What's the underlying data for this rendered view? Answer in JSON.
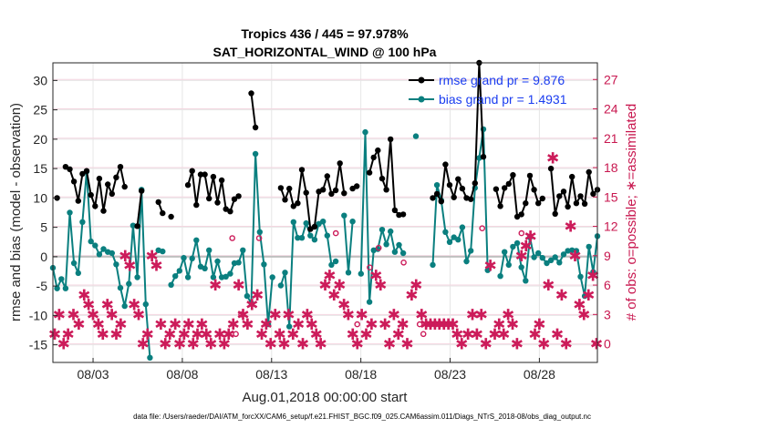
{
  "chart_data": {
    "type": "line",
    "title": "Tropics 436 / 445 = 97.978%",
    "subtitle": "SAT_HORIZONTAL_WIND @ 100 hPa",
    "xlabel": "Aug.01,2018 00:00:00 start",
    "ylabel": "rmse and bias (model - observation)",
    "y2label": "# of obs: o=possible; ∗=assimilated",
    "footer": "data file: /Users/raeder/DAI/ATM_forcXX/CAM6_setup/f.e21.FHIST_BGC.f09_025.CAM6assim.011/Diags_NTrS_2018-08/obs_diag_output.nc",
    "xlim": [
      0.75,
      31.25
    ],
    "ylim": [
      -18,
      33
    ],
    "y2lim": [
      -1.9,
      28.7
    ],
    "x_ticks": [
      3,
      8,
      13,
      18,
      23,
      28
    ],
    "x_tick_labels": [
      "08/03",
      "08/08",
      "08/13",
      "08/18",
      "08/23",
      "08/28"
    ],
    "y_ticks": [
      -15,
      -10,
      -5,
      0,
      5,
      10,
      15,
      20,
      25,
      30
    ],
    "y_tick_labels": [
      "-15",
      "-10",
      "-5",
      "0",
      "5",
      "10",
      "15",
      "20",
      "25",
      "30"
    ],
    "y2_ticks": [
      0,
      3,
      6,
      9,
      12,
      15,
      18,
      21,
      24,
      27
    ],
    "y2_tick_labels": [
      "0",
      "3",
      "6",
      "9",
      "12",
      "15",
      "18",
      "21",
      "24",
      "27"
    ],
    "legend_position": "top-right",
    "grid": true,
    "colors": {
      "rmse": "#000000",
      "bias": "#0a7f7f",
      "obs": "#cc1c5a",
      "zero": "#bfbfbf"
    },
    "series": [
      {
        "name": "rmse grand pr = 9.876",
        "key": "rmse",
        "values": [
          null,
          10.0,
          null,
          15.3,
          14.9,
          12.8,
          9.5,
          14.1,
          14.6,
          10.5,
          8.6,
          13.3,
          7.8,
          12.3,
          10.7,
          13.5,
          15.3,
          11.9,
          null,
          null,
          5.2,
          11.2,
          null,
          null,
          null,
          9.3,
          7.4,
          null,
          6.8,
          null,
          null,
          null,
          12.2,
          14.6,
          8.8,
          14.0,
          14.0,
          9.9,
          13.6,
          9.2,
          13.0,
          8.1,
          7.7,
          9.8,
          10.3,
          null,
          null,
          27.8,
          22.0,
          null,
          null,
          null,
          null,
          null,
          11.7,
          9.7,
          11.6,
          8.6,
          9.1,
          14.8,
          10.9,
          4.7,
          5.1,
          11.1,
          11.4,
          13.7,
          10.7,
          11.3,
          15.9,
          10.8,
          null,
          11.6,
          12.0,
          null,
          null,
          14.3,
          16.9,
          18.1,
          13.3,
          11.4,
          20.0,
          7.9,
          7.1,
          7.2,
          null,
          null,
          null,
          null,
          null,
          null,
          10.0,
          10.7,
          9.4,
          15.7,
          12.2,
          10.1,
          13.2,
          11.6,
          10.0,
          9.8,
          12.5,
          33.0,
          17.0,
          null,
          null,
          11.5,
          8.6,
          11.7,
          12.4,
          13.9,
          6.8,
          7.2,
          9.1,
          13.8,
          11.4,
          9.1,
          9.9,
          null,
          15.0,
          7.3,
          10.3,
          11.1,
          8.5,
          13.6,
          9.1,
          10.3,
          9.0,
          14.4,
          10.7,
          11.4
        ]
      },
      {
        "name": "bias grand pr = 1.4931",
        "key": "bias",
        "values": [
          -1.9,
          -5.4,
          -3.8,
          -5.4,
          7.5,
          -1.1,
          -2.8,
          5.9,
          14.5,
          2.6,
          1.9,
          0.4,
          1.3,
          0.8,
          0.6,
          -1.3,
          -5.3,
          -8.4,
          -4.6,
          5.3,
          -3.5,
          11.4,
          -8.1,
          -17.2,
          null,
          1.1,
          0.9,
          null,
          -4.8,
          -3.3,
          -2.4,
          -0.2,
          -3.5,
          -0.3,
          2.8,
          -1.7,
          -2.0,
          1.1,
          -3.5,
          -0.8,
          -3.5,
          -3.4,
          -2.9,
          -1.1,
          -1.0,
          1.1,
          -6.7,
          -7.9,
          17.5,
          4.2,
          -1.3,
          -11.5,
          -3.5,
          null,
          -4.9,
          -2.7,
          -11.9,
          5.9,
          3.2,
          3.2,
          5.7,
          3.6,
          2.9,
          5.6,
          6.0,
          3.6,
          -1.4,
          -0.8,
          null,
          7.0,
          -2.7,
          6.0,
          null,
          -2.9,
          21.2,
          -7.7,
          1.1,
          1.3,
          4.6,
          2.1,
          4.3,
          0.8,
          2.0,
          0.6,
          null,
          null,
          20.5,
          null,
          null,
          null,
          -1.4,
          12.2,
          9.6,
          4.2,
          2.5,
          3.3,
          2.9,
          5.0,
          -0.8,
          1.0,
          11.7,
          16.8,
          21.7,
          -2.3,
          null,
          null,
          -3.3,
          0.8,
          -1.4,
          1.7,
          2.3,
          -1.8,
          -4.1,
          3.3,
          -0.1,
          0.6,
          -0.2,
          -1.1,
          -0.6,
          -0.1,
          -1.0,
          0.4,
          1.0,
          1.1,
          1.0,
          -3.4,
          -6.7,
          1.7,
          -2.6,
          3.5
        ]
      },
      {
        "name": "obs possible (o)",
        "key": "possible",
        "points": [
          [
            10.8,
            10.8
          ],
          [
            11.3,
            3.0
          ],
          [
            12.3,
            10.8
          ],
          [
            18.5,
            7.8
          ],
          [
            19.0,
            9.8
          ],
          [
            20.4,
            8.3
          ],
          [
            21.3,
            2.0
          ],
          [
            21.5,
            1.0
          ],
          [
            24.8,
            11.8
          ],
          [
            27.0,
            11.3
          ],
          [
            11.0,
            1.0
          ],
          [
            17.8,
            2.0
          ],
          [
            16.6,
            11.3
          ]
        ]
      },
      {
        "name": "obs assimilated (∗)",
        "key": "assimilated",
        "points": [
          [
            0.85,
            1.0
          ],
          [
            1.1,
            3.0
          ],
          [
            1.35,
            0.0
          ],
          [
            1.6,
            1.0
          ],
          [
            1.9,
            3.0
          ],
          [
            2.2,
            2.0
          ],
          [
            2.5,
            5.0
          ],
          [
            2.75,
            4.0
          ],
          [
            3.0,
            3.0
          ],
          [
            3.3,
            2.0
          ],
          [
            3.55,
            1.0
          ],
          [
            3.8,
            4.0
          ],
          [
            4.05,
            3.0
          ],
          [
            4.3,
            1.0
          ],
          [
            4.55,
            2.0
          ],
          [
            4.8,
            9.0
          ],
          [
            5.05,
            8.0
          ],
          [
            5.3,
            4.0
          ],
          [
            5.55,
            3.0
          ],
          [
            5.8,
            0.0
          ],
          [
            6.05,
            1.0
          ],
          [
            6.3,
            9.0
          ],
          [
            6.55,
            8.0
          ],
          [
            6.8,
            2.0
          ],
          [
            7.05,
            0.0
          ],
          [
            7.3,
            1.0
          ],
          [
            7.6,
            2.0
          ],
          [
            7.85,
            0.0
          ],
          [
            8.1,
            1.0
          ],
          [
            8.35,
            2.0
          ],
          [
            8.6,
            0.0
          ],
          [
            8.85,
            1.0
          ],
          [
            9.1,
            2.0
          ],
          [
            9.35,
            1.0
          ],
          [
            9.6,
            0.0
          ],
          [
            9.85,
            6.0
          ],
          [
            10.1,
            1.0
          ],
          [
            10.35,
            0.0
          ],
          [
            10.6,
            1.0
          ],
          [
            10.85,
            2.0
          ],
          [
            11.15,
            6.0
          ],
          [
            11.4,
            3.0
          ],
          [
            11.65,
            2.0
          ],
          [
            11.9,
            4.0
          ],
          [
            12.2,
            5.0
          ],
          [
            12.45,
            1.0
          ],
          [
            12.7,
            2.0
          ],
          [
            12.95,
            0.0
          ],
          [
            13.2,
            3.0
          ],
          [
            13.45,
            1.0
          ],
          [
            13.7,
            0.0
          ],
          [
            13.95,
            3.0
          ],
          [
            14.2,
            1.0
          ],
          [
            14.5,
            2.0
          ],
          [
            14.75,
            0.0
          ],
          [
            15.0,
            3.0
          ],
          [
            15.25,
            2.0
          ],
          [
            15.5,
            1.0
          ],
          [
            15.75,
            0.0
          ],
          [
            16.0,
            6.0
          ],
          [
            16.25,
            7.0
          ],
          [
            16.5,
            5.0
          ],
          [
            16.8,
            6.0
          ],
          [
            17.05,
            4.0
          ],
          [
            17.3,
            3.0
          ],
          [
            17.55,
            1.0
          ],
          [
            17.8,
            0.0
          ],
          [
            18.05,
            3.0
          ],
          [
            18.3,
            1.0
          ],
          [
            18.6,
            2.0
          ],
          [
            18.85,
            7.0
          ],
          [
            19.1,
            6.0
          ],
          [
            19.35,
            2.0
          ],
          [
            19.6,
            0.0
          ],
          [
            19.85,
            3.0
          ],
          [
            20.1,
            1.0
          ],
          [
            20.35,
            2.0
          ],
          [
            20.6,
            0.0
          ],
          [
            20.85,
            5.0
          ],
          [
            21.1,
            6.0
          ],
          [
            21.4,
            3.0
          ],
          [
            21.65,
            2.0
          ],
          [
            21.9,
            2.0
          ],
          [
            22.15,
            2.0
          ],
          [
            22.4,
            2.0
          ],
          [
            22.65,
            2.0
          ],
          [
            22.9,
            2.0
          ],
          [
            23.15,
            2.0
          ],
          [
            23.4,
            1.0
          ],
          [
            23.65,
            0.0
          ],
          [
            24.0,
            1.0
          ],
          [
            24.25,
            3.0
          ],
          [
            24.5,
            1.0
          ],
          [
            24.75,
            3.0
          ],
          [
            25.0,
            0.0
          ],
          [
            25.25,
            8.0
          ],
          [
            25.5,
            1.0
          ],
          [
            25.75,
            2.0
          ],
          [
            26.0,
            1.0
          ],
          [
            26.25,
            3.0
          ],
          [
            26.5,
            2.0
          ],
          [
            26.75,
            0.0
          ],
          [
            27.0,
            9.0
          ],
          [
            27.25,
            10.0
          ],
          [
            27.5,
            11.0
          ],
          [
            27.75,
            1.0
          ],
          [
            28.0,
            2.0
          ],
          [
            28.25,
            0.0
          ],
          [
            28.5,
            6.0
          ],
          [
            28.75,
            19.0
          ],
          [
            29.0,
            1.0
          ],
          [
            29.25,
            5.0
          ],
          [
            29.5,
            0.0
          ],
          [
            29.75,
            12.0
          ],
          [
            30.0,
            9.0
          ],
          [
            30.25,
            4.0
          ],
          [
            30.5,
            3.0
          ],
          [
            30.75,
            5.0
          ],
          [
            31.0,
            7.0
          ],
          [
            31.2,
            0.0
          ]
        ]
      }
    ]
  }
}
